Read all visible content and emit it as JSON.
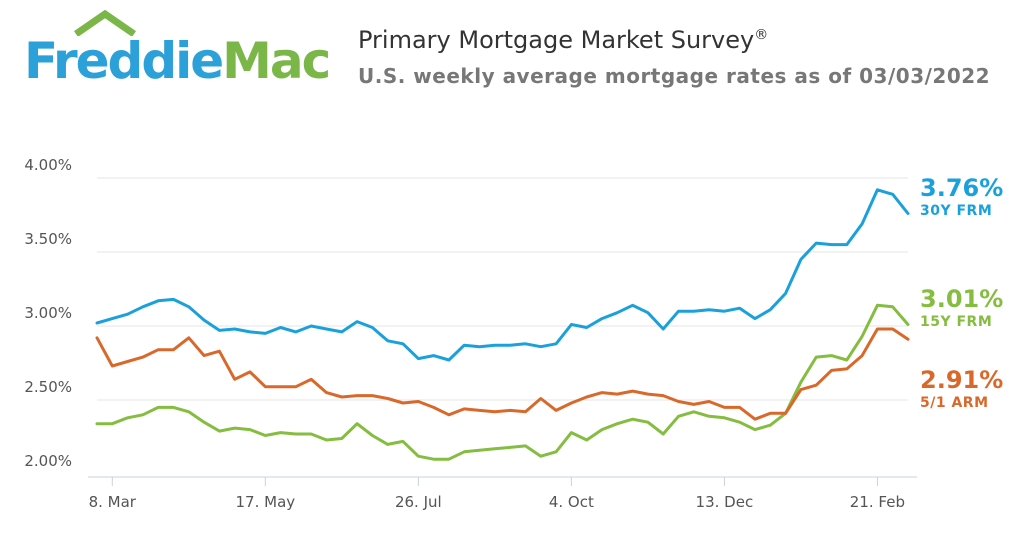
{
  "logo": {
    "part1": "Freddie",
    "part2": "Mac"
  },
  "header": {
    "title": "Primary Mortgage Market Survey",
    "title_mark": "®",
    "subtitle": "U.S. weekly average mortgage rates as of 03/03/2022"
  },
  "colors": {
    "frm30": "#1aa1dc",
    "frm15": "#84bd3f",
    "arm51": "#d9692b",
    "grid": "#e6e6e6",
    "axis": "#555555"
  },
  "end_labels": {
    "frm30": {
      "value": "3.76%",
      "name": "30Y FRM"
    },
    "frm15": {
      "value": "3.01%",
      "name": "15Y FRM"
    },
    "arm51": {
      "value": "2.91%",
      "name": "5/1 ARM"
    }
  },
  "chart_data": {
    "type": "line",
    "title": "Primary Mortgage Market Survey",
    "subtitle": "U.S. weekly average mortgage rates as of 03/03/2022",
    "xlabel": "",
    "ylabel": "",
    "ylim": [
      2.0,
      4.0
    ],
    "yticks": [
      "2.00%",
      "2.50%",
      "3.00%",
      "3.50%",
      "4.00%"
    ],
    "x_tick_labels": [
      "8. Mar",
      "17. May",
      "26. Jul",
      "4. Oct",
      "13. Dec",
      "21. Feb"
    ],
    "x_tick_week_index": [
      1,
      11,
      21,
      31,
      41,
      51
    ],
    "grid": true,
    "legend": "none",
    "series": [
      {
        "key": "frm30",
        "name": "30Y FRM",
        "values": [
          3.02,
          3.05,
          3.08,
          3.13,
          3.17,
          3.18,
          3.13,
          3.04,
          2.97,
          2.98,
          2.96,
          2.95,
          2.99,
          2.96,
          3.0,
          2.98,
          2.96,
          3.03,
          2.99,
          2.9,
          2.88,
          2.78,
          2.8,
          2.77,
          2.87,
          2.86,
          2.87,
          2.87,
          2.88,
          2.86,
          2.88,
          3.01,
          2.99,
          3.05,
          3.09,
          3.14,
          3.09,
          2.98,
          3.1,
          3.1,
          3.11,
          3.1,
          3.12,
          3.05,
          3.11,
          3.22,
          3.45,
          3.56,
          3.55,
          3.55,
          3.69,
          3.92,
          3.89,
          3.76
        ]
      },
      {
        "key": "frm15",
        "name": "15Y FRM",
        "values": [
          2.34,
          2.34,
          2.38,
          2.4,
          2.45,
          2.45,
          2.42,
          2.35,
          2.29,
          2.31,
          2.3,
          2.26,
          2.28,
          2.27,
          2.27,
          2.23,
          2.24,
          2.34,
          2.26,
          2.2,
          2.22,
          2.12,
          2.1,
          2.1,
          2.15,
          2.16,
          2.17,
          2.18,
          2.19,
          2.12,
          2.15,
          2.28,
          2.23,
          2.3,
          2.34,
          2.37,
          2.35,
          2.27,
          2.39,
          2.42,
          2.39,
          2.38,
          2.35,
          2.3,
          2.33,
          2.41,
          2.62,
          2.79,
          2.8,
          2.77,
          2.93,
          3.14,
          3.13,
          3.01
        ]
      },
      {
        "key": "arm51",
        "name": "5/1 ARM",
        "values": [
          2.92,
          2.73,
          2.76,
          2.79,
          2.84,
          2.84,
          2.92,
          2.8,
          2.83,
          2.64,
          2.69,
          2.59,
          2.59,
          2.59,
          2.64,
          2.55,
          2.52,
          2.53,
          2.53,
          2.51,
          2.48,
          2.49,
          2.45,
          2.4,
          2.44,
          2.43,
          2.42,
          2.43,
          2.42,
          2.51,
          2.43,
          2.48,
          2.52,
          2.55,
          2.54,
          2.56,
          2.54,
          2.53,
          2.49,
          2.47,
          2.49,
          2.45,
          2.45,
          2.37,
          2.41,
          2.41,
          2.57,
          2.6,
          2.7,
          2.71,
          2.8,
          2.98,
          2.98,
          2.91
        ]
      }
    ]
  }
}
